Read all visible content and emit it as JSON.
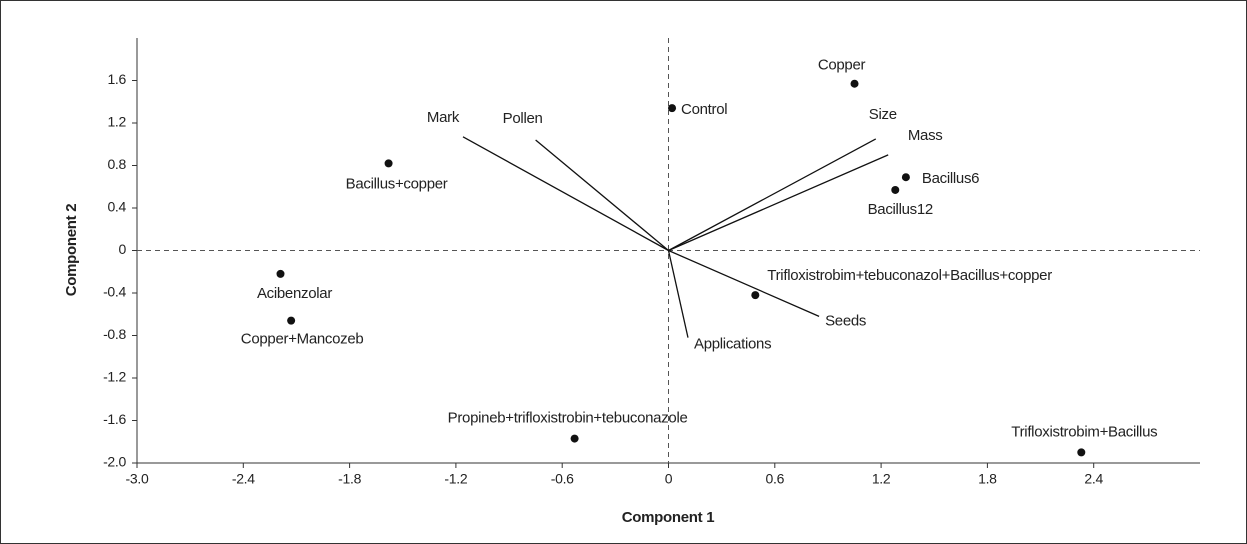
{
  "chart_data": {
    "type": "biplot",
    "xlabel": "Component 1",
    "ylabel": "Component 2",
    "xlim": [
      -3,
      3
    ],
    "ylim": [
      -2,
      2
    ],
    "xticks": [
      {
        "value": -3,
        "label": "-3.0"
      },
      -2.4,
      -1.8,
      -1.2,
      -0.6,
      0,
      0.6,
      1.2,
      1.8,
      2.4
    ],
    "yticks": [
      {
        "value": -2,
        "label": "-2.0"
      },
      -1.6,
      -1.2,
      -0.8,
      -0.4,
      0,
      0.4,
      0.8,
      1.2,
      1.6
    ],
    "zero_lines": true,
    "color": "#111111",
    "points": [
      {
        "name": "Copper",
        "x": 1.05,
        "y": 1.57
      },
      {
        "name": "Control",
        "x": 0.02,
        "y": 1.34
      },
      {
        "name": "Bacillus+copper",
        "x": -1.58,
        "y": 0.82
      },
      {
        "name": "Bacillus6",
        "x": 1.34,
        "y": 0.69
      },
      {
        "name": "Bacillus12",
        "x": 1.28,
        "y": 0.57
      },
      {
        "name": "Acibenzolar",
        "x": -2.19,
        "y": -0.22
      },
      {
        "name": "Copper+Mancozeb",
        "x": -2.13,
        "y": -0.66
      },
      {
        "name": "Trifloxistrobim+tebuconazol+Bacillus+copper",
        "x": 0.49,
        "y": -0.42
      },
      {
        "name": "Propineb+trifloxistrobin+tebuconazole",
        "x": -0.53,
        "y": -1.77
      },
      {
        "name": "Trifloxistrobim+Bacillus",
        "x": 2.33,
        "y": -1.9
      }
    ],
    "vectors": [
      {
        "name": "Mark",
        "x": -1.16,
        "y": 1.07
      },
      {
        "name": "Pollen",
        "x": -0.75,
        "y": 1.04
      },
      {
        "name": "Size",
        "x": 1.17,
        "y": 1.05
      },
      {
        "name": "Mass",
        "x": 1.24,
        "y": 0.9
      },
      {
        "name": "Seeds",
        "x": 0.85,
        "y": -0.62
      },
      {
        "name": "Applications",
        "x": 0.11,
        "y": -0.82
      }
    ]
  }
}
